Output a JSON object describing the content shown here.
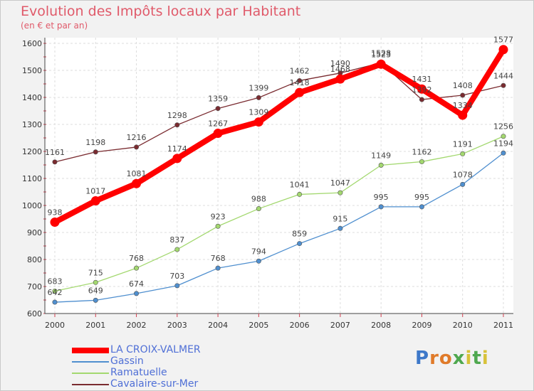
{
  "chart_data": {
    "type": "line",
    "title": "Evolution des Impôts locaux par Habitant",
    "subtitle": "(en € et par an)",
    "x": [
      "2000",
      "2001",
      "2002",
      "2003",
      "2004",
      "2005",
      "2006",
      "2007",
      "2008",
      "2009",
      "2010",
      "2011"
    ],
    "y_ticks": [
      "600",
      "700",
      "800",
      "900",
      "1000",
      "1100",
      "1200",
      "1300",
      "1400",
      "1500",
      "1600"
    ],
    "ylim": [
      600,
      1600
    ],
    "grid": true,
    "legend_position": "bottom-left",
    "series": [
      {
        "name": "LA CROIX-VALMER",
        "color": "#ff0000",
        "values": [
          938,
          1017,
          1081,
          1174,
          1267,
          1309,
          1418,
          1468,
          1523,
          1431,
          1334,
          1577
        ],
        "labels": [
          "938",
          "1017",
          "1081",
          "1174",
          "1267",
          "1309",
          "1418",
          "1468",
          "1523",
          "1431",
          "1334",
          "1577"
        ]
      },
      {
        "name": "Gassin",
        "color": "#4f8fcf",
        "values": [
          642,
          649,
          674,
          703,
          768,
          794,
          859,
          915,
          995,
          995,
          1078,
          1194
        ],
        "labels": [
          "642",
          "649",
          "674",
          "703",
          "768",
          "794",
          "859",
          "915",
          "995",
          "995",
          "1078",
          "1194"
        ]
      },
      {
        "name": "Ramatuelle",
        "color": "#a3d86f",
        "values": [
          683,
          715,
          768,
          837,
          923,
          988,
          1041,
          1047,
          1149,
          1162,
          1191,
          1256
        ],
        "labels": [
          "683",
          "715",
          "768",
          "837",
          "923",
          "988",
          "1041",
          "1047",
          "1149",
          "1162",
          "1191",
          "1256"
        ]
      },
      {
        "name": "Cavalaire-sur-Mer",
        "color": "#7a2b30",
        "values": [
          1161,
          1198,
          1216,
          1298,
          1359,
          1399,
          1462,
          1490,
          1528,
          1392,
          1408,
          1444
        ],
        "labels": [
          "1161",
          "1198",
          "1216",
          "1298",
          "1359",
          "1399",
          "1462",
          "1490",
          "1528",
          "1392",
          "1408",
          "1444"
        ]
      }
    ]
  },
  "logo": {
    "letters": [
      "P",
      "r",
      "o",
      "x",
      "i",
      "t",
      "i"
    ],
    "colors": [
      "#3d78c9",
      "#e07b2a",
      "#e07b2a",
      "#4fa84f",
      "#d8c23a",
      "#4fa84f",
      "#d8c23a"
    ]
  }
}
